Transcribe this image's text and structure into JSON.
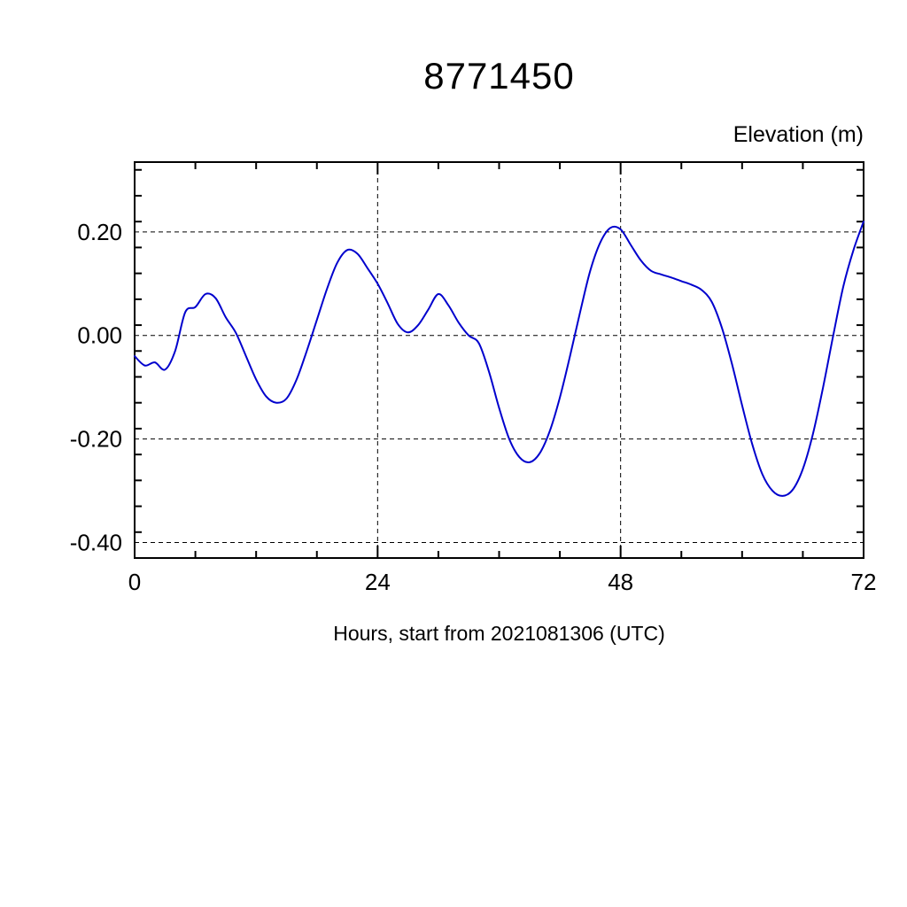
{
  "page": {
    "background": "#ffffff"
  },
  "chart_data": {
    "type": "line",
    "title": "8771450",
    "ylabel": "Elevation (m)",
    "xlabel": "Hours, start from 2021081306 (UTC)",
    "series_name": "elevation",
    "line_color": "#0000cd",
    "xlim": [
      0,
      72
    ],
    "ylim": [
      -0.43,
      0.335
    ],
    "x_minor_step": 6,
    "y_minor_step": 0.05,
    "x_tick_values": [
      0,
      24,
      48,
      72
    ],
    "x_tick_labels": [
      "0",
      "24",
      "48",
      "72"
    ],
    "y_tick_values": [
      0.2,
      0.0,
      -0.2,
      -0.4
    ],
    "y_tick_labels": [
      "0.20",
      "0.00",
      "-0.20",
      "-0.40"
    ],
    "grid": {
      "h_lines": [
        0.2,
        0.0,
        -0.2,
        -0.4
      ],
      "v_lines": [
        24,
        48
      ],
      "style": "dashed"
    },
    "x": [
      0,
      1,
      2,
      3,
      4,
      5,
      6,
      7,
      8,
      9,
      10,
      11,
      12,
      13,
      14,
      15,
      16,
      17,
      18,
      19,
      20,
      21,
      22,
      23,
      24,
      25,
      26,
      27,
      28,
      29,
      30,
      31,
      32,
      33,
      34,
      35,
      36,
      37,
      38,
      39,
      40,
      41,
      42,
      43,
      44,
      45,
      46,
      47,
      48,
      49,
      50,
      51,
      52,
      53,
      54,
      55,
      56,
      57,
      58,
      59,
      60,
      61,
      62,
      63,
      64,
      65,
      66,
      67,
      68,
      69,
      70,
      71,
      72
    ],
    "values": [
      -0.04,
      -0.058,
      -0.052,
      -0.066,
      -0.03,
      0.045,
      0.055,
      0.08,
      0.072,
      0.035,
      0.005,
      -0.04,
      -0.085,
      -0.118,
      -0.13,
      -0.122,
      -0.085,
      -0.03,
      0.03,
      0.09,
      0.14,
      0.165,
      0.158,
      0.13,
      0.1,
      0.062,
      0.022,
      0.006,
      0.02,
      0.05,
      0.08,
      0.058,
      0.025,
      0.0,
      -0.015,
      -0.07,
      -0.14,
      -0.2,
      -0.235,
      -0.245,
      -0.228,
      -0.185,
      -0.12,
      -0.04,
      0.045,
      0.125,
      0.18,
      0.208,
      0.205,
      0.175,
      0.145,
      0.125,
      0.118,
      0.112,
      0.105,
      0.098,
      0.088,
      0.065,
      0.015,
      -0.055,
      -0.135,
      -0.21,
      -0.268,
      -0.3,
      -0.31,
      -0.298,
      -0.258,
      -0.19,
      -0.1,
      0.0,
      0.095,
      0.165,
      0.22
    ]
  }
}
